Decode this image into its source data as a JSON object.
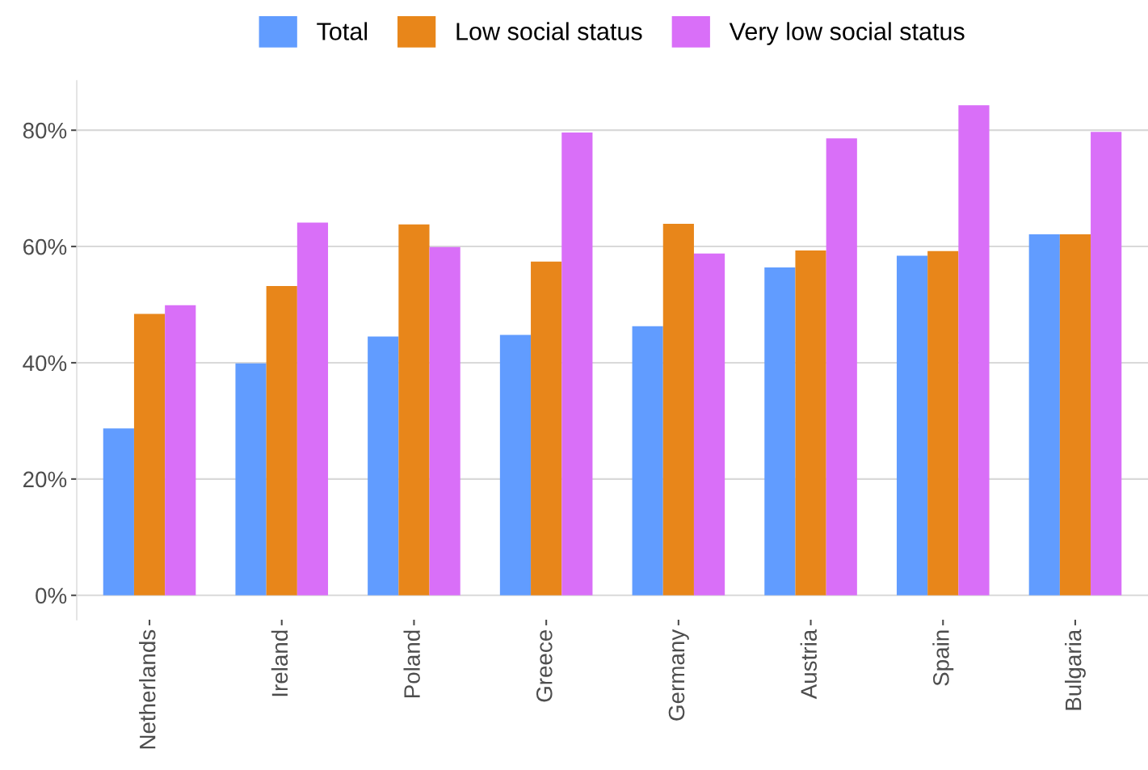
{
  "chart_data": {
    "type": "bar",
    "categories": [
      "Netherlands",
      "Ireland",
      "Poland",
      "Greece",
      "Germany",
      "Austria",
      "Spain",
      "Bulgaria"
    ],
    "series": [
      {
        "name": "Total",
        "color": "#619cff",
        "values": [
          28.7,
          39.9,
          44.5,
          44.8,
          46.3,
          56.4,
          58.4,
          62.1
        ]
      },
      {
        "name": "Low social status",
        "color": "#e8861a",
        "values": [
          48.4,
          53.2,
          63.8,
          57.4,
          63.9,
          59.3,
          59.2,
          62.1
        ]
      },
      {
        "name": "Very low social status",
        "color": "#d96ff8",
        "values": [
          49.9,
          64.1,
          59.9,
          79.6,
          58.8,
          78.6,
          84.3,
          79.7
        ]
      }
    ],
    "yticks": [
      {
        "value": 0,
        "label": "0%"
      },
      {
        "value": 20,
        "label": "20%"
      },
      {
        "value": 40,
        "label": "40%"
      },
      {
        "value": 60,
        "label": "60%"
      },
      {
        "value": 80,
        "label": "80%"
      }
    ],
    "ylim": [
      -4.2,
      88.5
    ],
    "grid": "y",
    "legend": "top"
  }
}
